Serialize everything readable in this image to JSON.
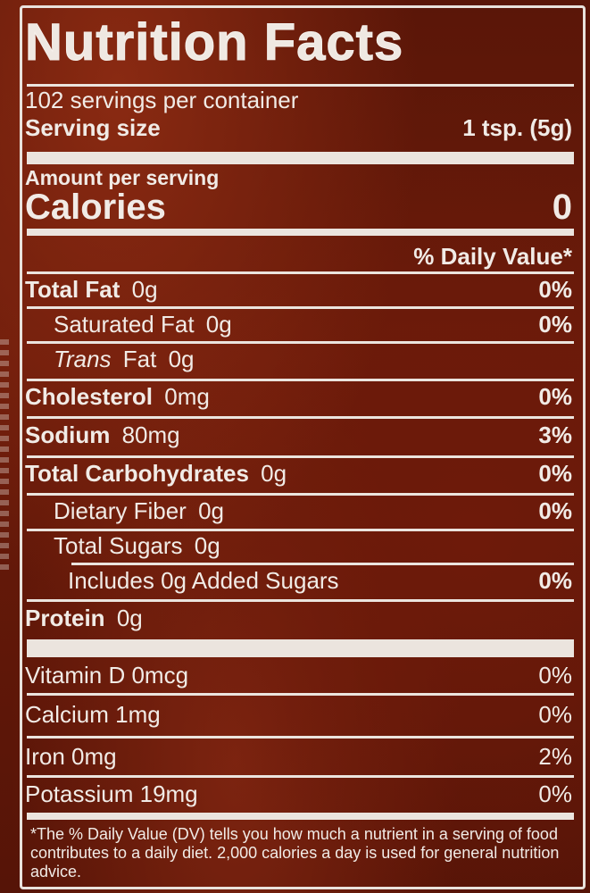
{
  "label": {
    "title": "Nutrition Facts",
    "servings": "102 servings per container",
    "serving_size_label": "Serving size",
    "serving_size_value": "1 tsp. (5g)",
    "amount_per_serving": "Amount per serving",
    "calories_label": "Calories",
    "calories_value": "0",
    "dv_header": "% Daily Value*",
    "nutrients": [
      {
        "name": "Total Fat",
        "amount": "0g",
        "dv": "0%"
      },
      {
        "name": "Saturated Fat",
        "amount": "0g",
        "dv": "0%"
      },
      {
        "name": "Trans",
        "name2": "Fat",
        "amount": "0g",
        "dv": ""
      },
      {
        "name": "Cholesterol",
        "amount": "0mg",
        "dv": "0%"
      },
      {
        "name": "Sodium",
        "amount": "80mg",
        "dv": "3%"
      },
      {
        "name": "Total Carbohydrates",
        "amount": "0g",
        "dv": "0%"
      },
      {
        "name": "Dietary Fiber",
        "amount": "0g",
        "dv": "0%"
      },
      {
        "name": "Total Sugars",
        "amount": "0g",
        "dv": ""
      },
      {
        "name": "Includes 0g Added Sugars",
        "amount": "",
        "dv": "0%"
      },
      {
        "name": "Protein",
        "amount": "0g",
        "dv": ""
      }
    ],
    "vitamins": [
      {
        "text": "Vitamin D 0mcg",
        "dv": "0%"
      },
      {
        "text": "Calcium 1mg",
        "dv": "0%"
      },
      {
        "text": "Iron 0mg",
        "dv": "2%"
      },
      {
        "text": "Potassium 19mg",
        "dv": "0%"
      }
    ],
    "footnote": "*The % Daily Value (DV) tells you how much a nutrient in a serving of food contributes to a daily diet. 2,000 calories a day is used for general nutrition advice."
  }
}
